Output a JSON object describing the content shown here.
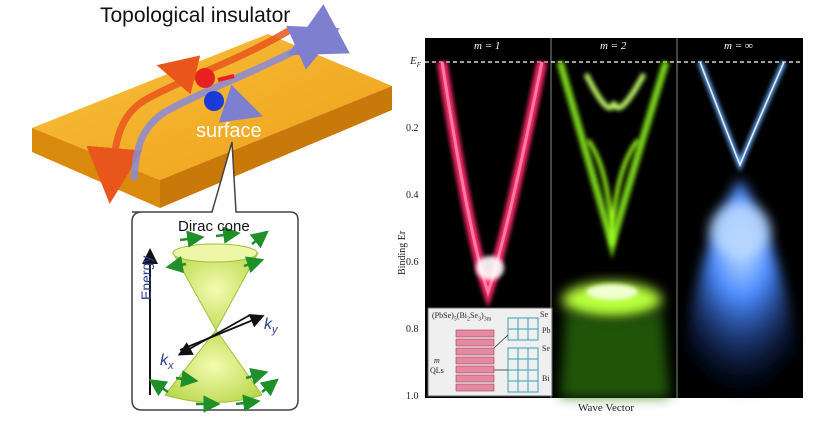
{
  "left": {
    "title": "Topological insulator",
    "surface_label": "surface",
    "dirac_cone_title": "Dirac cone",
    "energy_axis": "Energy",
    "kx_label": "k",
    "kx_sub": "x",
    "ky_label": "k",
    "ky_sub": "y"
  },
  "right": {
    "panels": [
      {
        "title_m": "m",
        "title_eq": " = 1"
      },
      {
        "title_m": "m",
        "title_eq": " = 2"
      },
      {
        "title_m": "m",
        "title_eq": " = ∞"
      }
    ],
    "ef_label": "E",
    "ef_sub": "F",
    "y_ticks": [
      "0.2",
      "0.4",
      "0.6",
      "0.8",
      "1.0"
    ],
    "y_axis_label": "Binding Er",
    "x_axis_label": "Wave Vector",
    "inset": {
      "formula": "(PbSe)",
      "formula_rest": "(Bi",
      "labels": [
        "Se",
        "Pb",
        "Se",
        "Bi"
      ],
      "ql_m": "m",
      "ql_text": "QLs"
    }
  },
  "colors": {
    "slab_top": "#f2a51e",
    "slab_side": "#d98a0c",
    "cone": "#d7ec7a",
    "arrow_green": "#1f8f2a",
    "band_m1": "#ff2a6a",
    "band_m2": "#9cff1a",
    "band_minf": "#3a8bff"
  }
}
